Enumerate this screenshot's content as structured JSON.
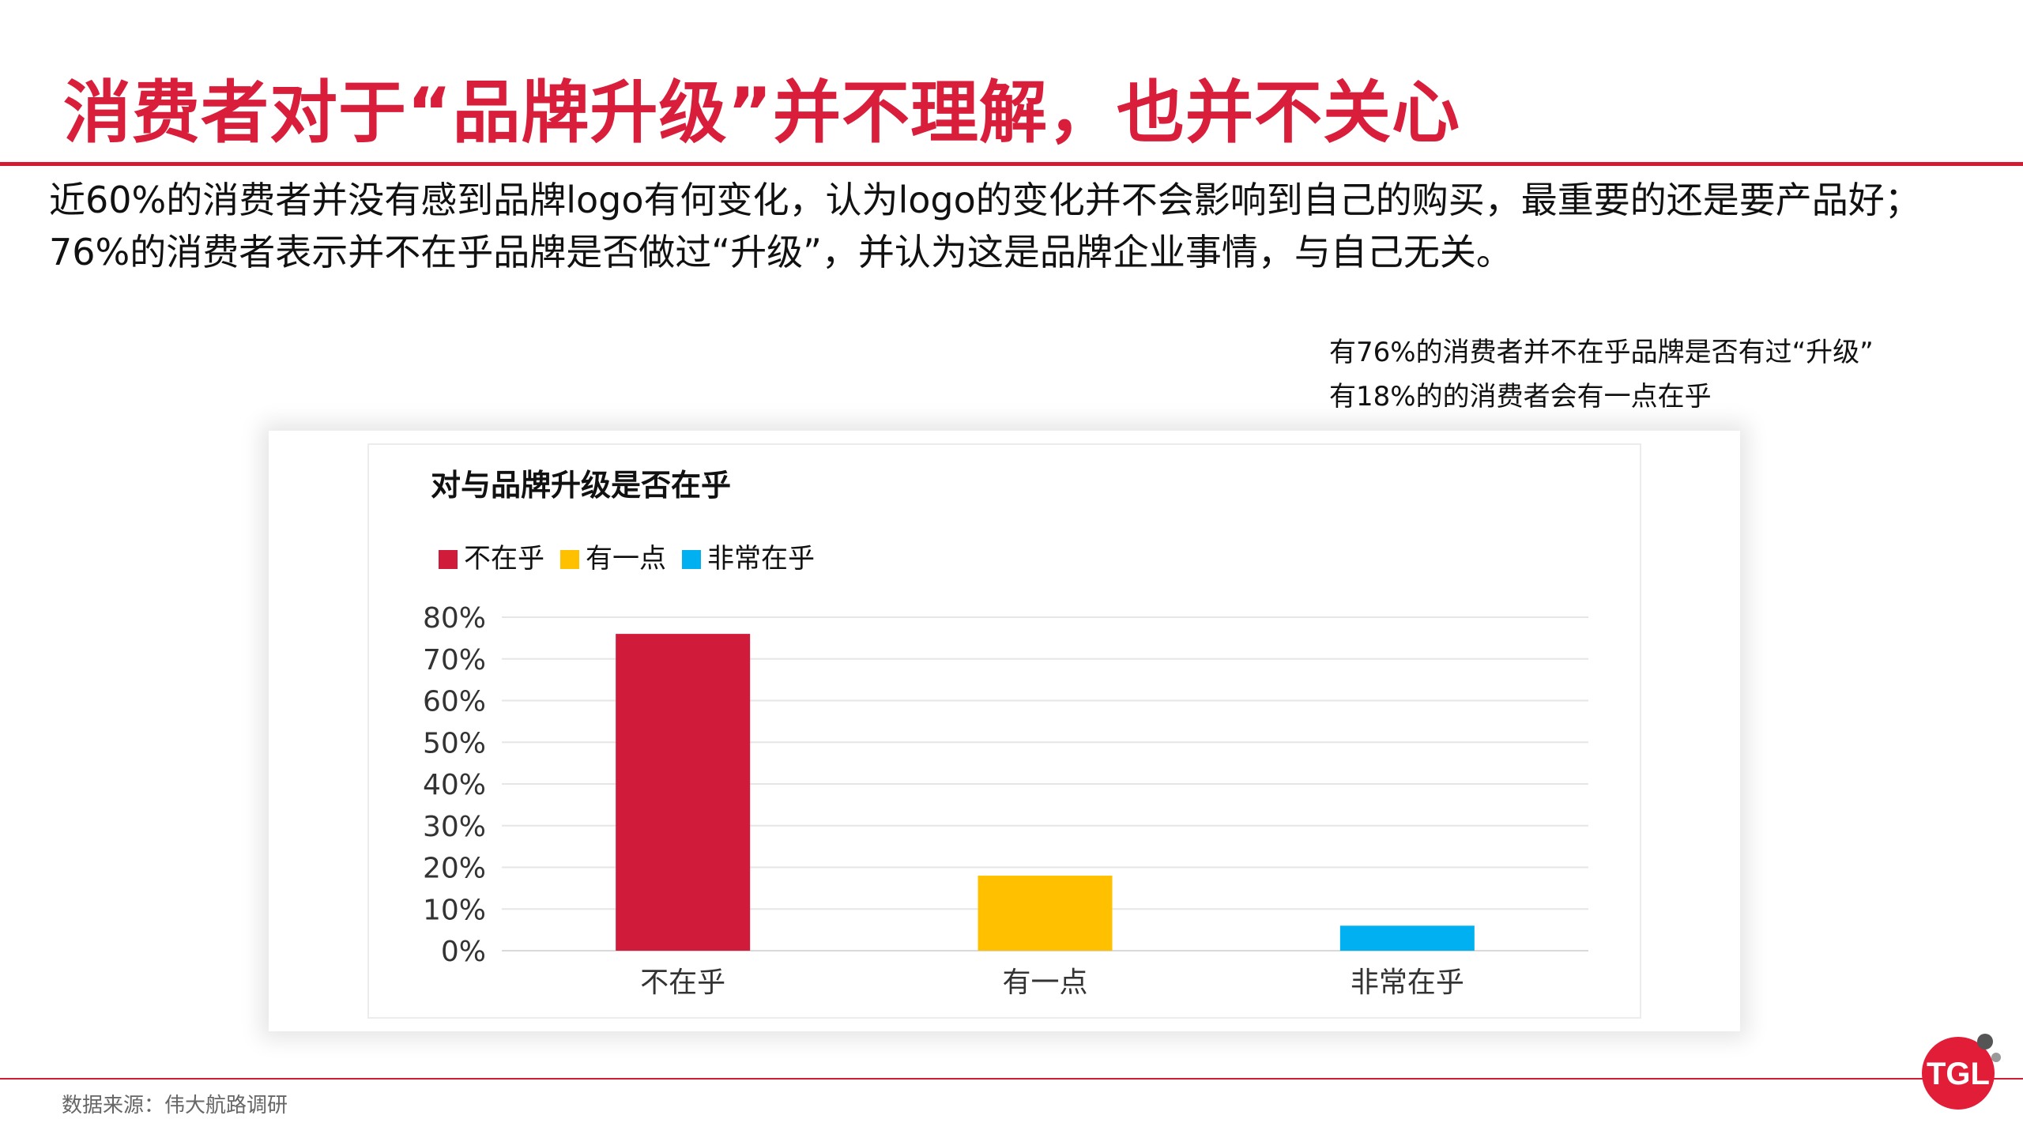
{
  "header": {
    "title": "消费者对于“品牌升级”并不理解，也并不关心"
  },
  "intro_text": "近60%的消费者并没有感到品牌logo有何变化，认为logo的变化并不会影响到自己的购买，最重要的还是要产品好；76%的消费者表示并不在乎品牌是否做过“升级”，并认为这是品牌企业事情，与自己无关。",
  "notes": [
    "有76%的消费者并不在乎品牌是否有过“升级”",
    "有18%的的消费者会有一点在乎"
  ],
  "chart_data": {
    "type": "bar",
    "title": "对与品牌升级是否在乎",
    "categories": [
      "不在乎",
      "有一点",
      "非常在乎"
    ],
    "values": [
      76,
      18,
      6
    ],
    "colors": [
      "#d11b3b",
      "#ffc000",
      "#00b0f0"
    ],
    "legend": [
      {
        "name": "不在乎",
        "color": "#d11b3b"
      },
      {
        "name": "有一点",
        "color": "#ffc000"
      },
      {
        "name": "非常在乎",
        "color": "#00b0f0"
      }
    ],
    "legend_position": "top-left",
    "ylim": [
      0,
      80
    ],
    "yticks": [
      "0%",
      "10%",
      "20%",
      "30%",
      "40%",
      "50%",
      "60%",
      "70%",
      "80%"
    ],
    "grid": true,
    "xlabel": "",
    "ylabel": ""
  },
  "footer": {
    "source": "数据来源：伟大航路调研",
    "logo_text": "TGL"
  },
  "colors": {
    "accent": "#d81e3a",
    "rule": "#d11c34"
  }
}
